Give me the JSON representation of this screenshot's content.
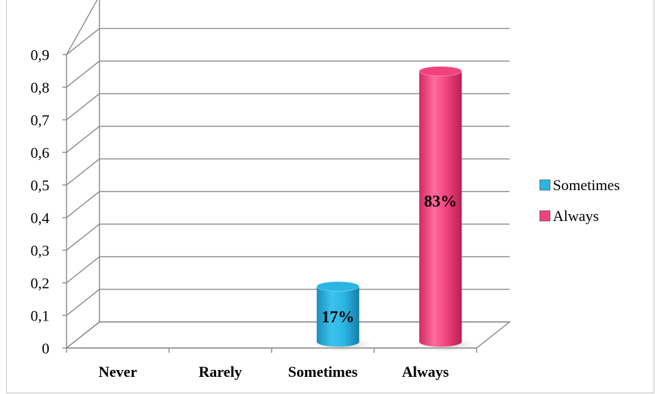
{
  "chart_data": {
    "type": "bar",
    "categories": [
      "Never",
      "Rarely",
      "Sometimes",
      "Always"
    ],
    "series": [
      {
        "name": "Sometimes",
        "category": "Sometimes",
        "value": 0.17,
        "label": "17%",
        "color": "#2bb5e3"
      },
      {
        "name": "Always",
        "category": "Always",
        "value": 0.83,
        "label": "83%",
        "color": "#f0427e"
      }
    ],
    "y_ticks": [
      "0",
      "0,1",
      "0,2",
      "0,3",
      "0,4",
      "0,5",
      "0,6",
      "0,7",
      "0,8",
      "0,9"
    ],
    "ylim": [
      0,
      1
    ],
    "grid": true,
    "style": "3d-cylinder",
    "legend_position": "right"
  }
}
